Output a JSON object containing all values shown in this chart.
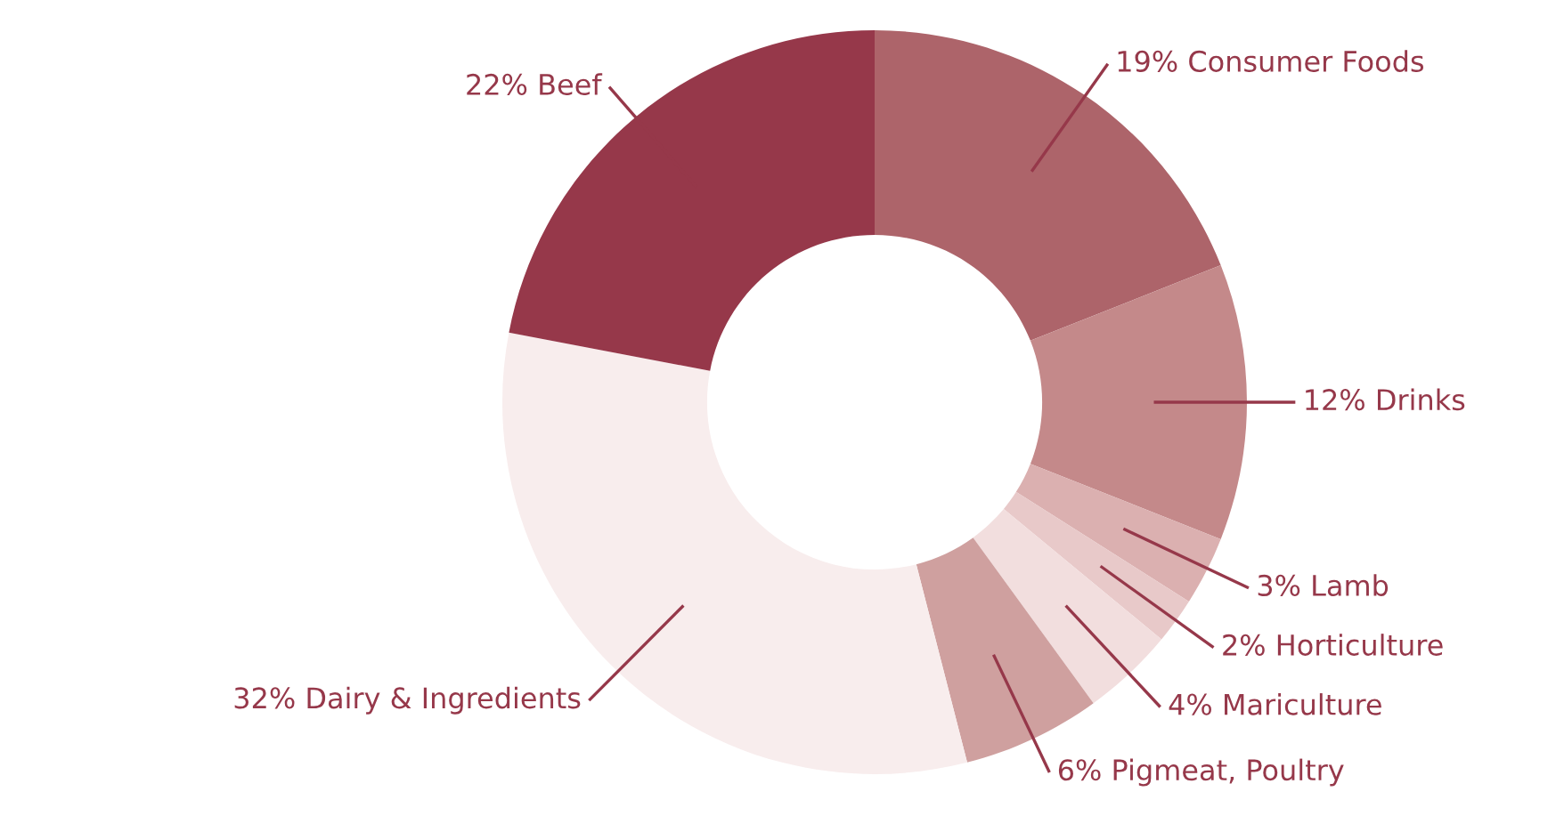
{
  "chart_data": {
    "type": "donut",
    "categories": [
      "Consumer Foods",
      "Drinks",
      "Lamb",
      "Horticulture",
      "Mariculture",
      "Pigmeat, Poultry",
      "Dairy & Ingredients",
      "Beef"
    ],
    "values": [
      19,
      12,
      3,
      2,
      4,
      6,
      32,
      22
    ],
    "value_labels": [
      "19%",
      "12%",
      "3%",
      "2%",
      "4%",
      "6%",
      "32%",
      "22%"
    ],
    "colors": [
      "#ad646a",
      "#c4898a",
      "#dbb0b0",
      "#e8c9c9",
      "#f2dede",
      "#cfa09f",
      "#f8eded",
      "#96384a"
    ],
    "legend": false
  }
}
